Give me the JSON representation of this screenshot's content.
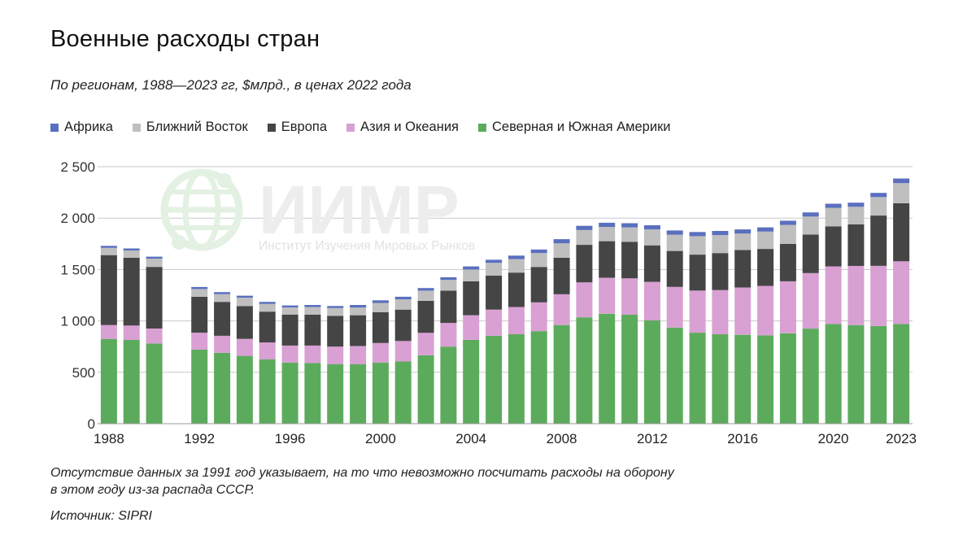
{
  "header": {
    "title": "Военные расходы стран",
    "subtitle": "По регионам, 1988—2023 гг, $млрд., в ценах 2022 года"
  },
  "watermark": {
    "name": "ИИМР",
    "tagline": "Институт Изучения Мировых Рынков"
  },
  "footer": {
    "note_line1": "Отсутствие данных за 1991 год указывает, на то что невозможно посчитать расходы на оборону",
    "note_line2": "в этом году из-за распада СССР.",
    "source": "Источник: SIPRI"
  },
  "chart_data": {
    "type": "bar",
    "stacked": true,
    "ylim": [
      0,
      2500
    ],
    "yticks": [
      0,
      500,
      1000,
      1500,
      2000,
      2500
    ],
    "ytick_labels": [
      "0",
      "500",
      "1 000",
      "1 500",
      "2 000",
      "2 500"
    ],
    "xtick_labels": [
      "1988",
      "1992",
      "1996",
      "2000",
      "2004",
      "2008",
      "2012",
      "2016",
      "2020",
      "2023"
    ],
    "grid": true,
    "legend_position": "top-left",
    "categories": [
      1988,
      1989,
      1990,
      1991,
      1992,
      1993,
      1994,
      1995,
      1996,
      1997,
      1998,
      1999,
      2000,
      2001,
      2002,
      2003,
      2004,
      2005,
      2006,
      2007,
      2008,
      2009,
      2010,
      2011,
      2012,
      2013,
      2014,
      2015,
      2016,
      2017,
      2018,
      2019,
      2020,
      2021,
      2022,
      2023
    ],
    "series": [
      {
        "name": "Северная и Южная Америки",
        "color": "#5cab5c",
        "values": [
          825,
          815,
          780,
          null,
          720,
          690,
          660,
          625,
          595,
          590,
          580,
          580,
          595,
          605,
          665,
          750,
          815,
          855,
          870,
          900,
          960,
          1035,
          1070,
          1060,
          1005,
          935,
          885,
          870,
          865,
          860,
          880,
          925,
          970,
          960,
          950,
          970
        ]
      },
      {
        "name": "Азия и Океания",
        "color": "#d9a0d3",
        "values": [
          135,
          140,
          145,
          null,
          165,
          165,
          165,
          165,
          165,
          170,
          170,
          175,
          190,
          200,
          220,
          230,
          240,
          255,
          265,
          280,
          300,
          340,
          350,
          355,
          375,
          395,
          410,
          430,
          460,
          480,
          505,
          540,
          560,
          575,
          585,
          610
        ]
      },
      {
        "name": "Европа",
        "color": "#454545",
        "values": [
          680,
          660,
          600,
          null,
          350,
          330,
          320,
          300,
          300,
          300,
          300,
          300,
          300,
          305,
          310,
          315,
          330,
          330,
          335,
          345,
          355,
          365,
          355,
          355,
          355,
          350,
          350,
          360,
          365,
          360,
          365,
          375,
          390,
          405,
          490,
          565
        ]
      },
      {
        "name": "Ближний Восток",
        "color": "#bfbfbf",
        "values": [
          70,
          70,
          80,
          null,
          75,
          75,
          80,
          75,
          70,
          75,
          75,
          75,
          90,
          100,
          100,
          105,
          115,
          125,
          130,
          135,
          140,
          145,
          140,
          140,
          155,
          160,
          180,
          175,
          160,
          170,
          185,
          175,
          180,
          170,
          180,
          195
        ]
      },
      {
        "name": "Африка",
        "color": "#5a6fbf",
        "values": [
          20,
          20,
          20,
          null,
          20,
          20,
          20,
          20,
          20,
          20,
          20,
          25,
          25,
          25,
          25,
          25,
          30,
          30,
          35,
          35,
          40,
          40,
          40,
          40,
          40,
          40,
          40,
          40,
          40,
          40,
          40,
          40,
          40,
          40,
          40,
          45
        ]
      }
    ]
  }
}
